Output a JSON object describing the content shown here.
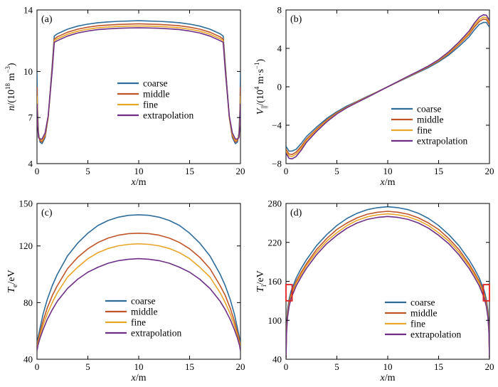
{
  "figure": {
    "legend": [
      "coarse",
      "middle",
      "fine",
      "extrapolation"
    ],
    "series_colors": [
      "#2f6d9b",
      "#c0552a",
      "#e8a628",
      "#6e2f87"
    ],
    "marker_color": "#e02020"
  },
  "chart_data": [
    {
      "id": "a",
      "type": "line",
      "panel_label": "(a)",
      "xlabel": "x/m",
      "ylabel": "n/(10^18 m^-3)",
      "ylabel_parts": {
        "main": "n",
        "rest_pre": "/(10",
        "sup1": "18",
        "mid": " m",
        "sup2": "−3",
        "close": ")"
      },
      "xlim": [
        0,
        20
      ],
      "ylim": [
        4,
        14
      ],
      "xticks": [
        0,
        5,
        10,
        15,
        20
      ],
      "yticks": [
        4,
        7,
        10,
        14
      ],
      "grid": false,
      "legend_position": "lower-center",
      "x": [
        0,
        0.05,
        0.15,
        0.3,
        0.5,
        0.8,
        1.1,
        1.5,
        1.7,
        2,
        3,
        4,
        5,
        6,
        7,
        8,
        9,
        10,
        11,
        12,
        13,
        14,
        15,
        16,
        17,
        18,
        18.3,
        18.5,
        18.9,
        19.2,
        19.5,
        19.7,
        19.85,
        19.95,
        20
      ],
      "series": [
        {
          "name": "coarse",
          "values": [
            10.0,
            7.6,
            6.0,
            5.4,
            5.3,
            5.7,
            7.0,
            10.5,
            12.3,
            12.45,
            12.75,
            12.95,
            13.08,
            13.17,
            13.22,
            13.26,
            13.28,
            13.3,
            13.28,
            13.26,
            13.22,
            13.17,
            13.08,
            12.95,
            12.75,
            12.45,
            12.3,
            10.5,
            7.0,
            5.7,
            5.3,
            5.4,
            6.0,
            7.6,
            10.0
          ]
        },
        {
          "name": "middle",
          "values": [
            9.0,
            7.1,
            5.8,
            5.5,
            5.4,
            5.8,
            7.0,
            10.3,
            12.1,
            12.25,
            12.55,
            12.75,
            12.88,
            12.97,
            13.02,
            13.06,
            13.08,
            13.1,
            13.08,
            13.06,
            13.02,
            12.97,
            12.88,
            12.75,
            12.55,
            12.25,
            12.1,
            10.3,
            7.0,
            5.8,
            5.4,
            5.5,
            5.8,
            7.1,
            9.0
          ]
        },
        {
          "name": "fine",
          "values": [
            8.4,
            6.8,
            5.8,
            5.6,
            5.5,
            5.9,
            7.0,
            10.2,
            12.0,
            12.12,
            12.42,
            12.62,
            12.75,
            12.84,
            12.89,
            12.93,
            12.95,
            12.96,
            12.95,
            12.93,
            12.89,
            12.84,
            12.75,
            12.62,
            12.42,
            12.12,
            12.0,
            10.2,
            7.0,
            5.9,
            5.5,
            5.6,
            5.8,
            6.8,
            8.4
          ]
        },
        {
          "name": "extrapolation",
          "values": [
            7.9,
            6.6,
            5.7,
            5.6,
            5.6,
            6.0,
            7.1,
            10.1,
            11.9,
            12.0,
            12.3,
            12.5,
            12.63,
            12.72,
            12.77,
            12.81,
            12.83,
            12.84,
            12.83,
            12.81,
            12.77,
            12.72,
            12.63,
            12.5,
            12.3,
            12.0,
            11.9,
            10.1,
            7.1,
            6.0,
            5.6,
            5.6,
            5.7,
            6.6,
            7.9
          ]
        }
      ]
    },
    {
      "id": "b",
      "type": "line",
      "panel_label": "(b)",
      "xlabel": "x/m",
      "ylabel": "V||/(10^4 m·s^-1)",
      "ylabel_parts": {
        "main": "V",
        "sub": "||",
        "rest_pre": "/(10",
        "sup1": "4",
        "mid": " m·s",
        "sup2": "−1",
        "close": ")"
      },
      "xlim": [
        0,
        20
      ],
      "ylim": [
        -8,
        8
      ],
      "xticks": [
        0,
        5,
        10,
        15,
        20
      ],
      "yticks": [
        -8,
        -4,
        0,
        4,
        8
      ],
      "grid": false,
      "legend_position": "lower-right",
      "x": [
        0,
        0.3,
        0.6,
        1.0,
        1.5,
        2,
        3,
        4,
        5,
        6,
        7,
        8,
        9,
        10,
        11,
        12,
        13,
        14,
        15,
        16,
        17,
        18,
        18.5,
        19,
        19.4,
        19.7,
        20
      ],
      "series": [
        {
          "name": "coarse",
          "values": [
            -6.2,
            -6.7,
            -6.7,
            -6.5,
            -5.9,
            -5.2,
            -4.2,
            -3.3,
            -2.6,
            -2.0,
            -1.5,
            -1.0,
            -0.5,
            0,
            0.5,
            1.0,
            1.5,
            2.0,
            2.6,
            3.3,
            4.2,
            5.2,
            5.9,
            6.5,
            6.7,
            6.7,
            6.2
          ]
        },
        {
          "name": "middle",
          "values": [
            -6.5,
            -7.0,
            -7.05,
            -6.8,
            -6.2,
            -5.45,
            -4.4,
            -3.45,
            -2.7,
            -2.1,
            -1.55,
            -1.05,
            -0.52,
            0,
            0.52,
            1.05,
            1.55,
            2.1,
            2.7,
            3.45,
            4.4,
            5.45,
            6.2,
            6.8,
            7.05,
            7.0,
            6.5
          ]
        },
        {
          "name": "fine",
          "values": [
            -6.7,
            -7.2,
            -7.25,
            -7.0,
            -6.4,
            -5.6,
            -4.5,
            -3.55,
            -2.75,
            -2.13,
            -1.58,
            -1.07,
            -0.53,
            0,
            0.53,
            1.07,
            1.58,
            2.13,
            2.75,
            3.55,
            4.5,
            5.6,
            6.4,
            7.0,
            7.25,
            7.2,
            6.7
          ]
        },
        {
          "name": "extrapolation",
          "values": [
            -6.9,
            -7.45,
            -7.5,
            -7.25,
            -6.6,
            -5.8,
            -4.65,
            -3.65,
            -2.82,
            -2.17,
            -1.62,
            -1.1,
            -0.55,
            0,
            0.55,
            1.1,
            1.62,
            2.17,
            2.82,
            3.65,
            4.65,
            5.8,
            6.6,
            7.25,
            7.5,
            7.45,
            6.9
          ]
        }
      ]
    },
    {
      "id": "c",
      "type": "line",
      "panel_label": "(c)",
      "xlabel": "x/m",
      "ylabel": "Te/eV",
      "ylabel_parts": {
        "main": "T",
        "sub": "e",
        "rest_pre": "/eV"
      },
      "xlim": [
        0,
        20
      ],
      "ylim": [
        40,
        150
      ],
      "xticks": [
        0,
        5,
        10,
        15,
        20
      ],
      "yticks": [
        40,
        80,
        120,
        150
      ],
      "grid": false,
      "legend_position": "lower-right",
      "x": [
        0,
        0.1,
        0.3,
        0.6,
        1,
        1.5,
        2,
        3,
        4,
        5,
        6,
        7,
        8,
        9,
        10,
        11,
        12,
        13,
        14,
        15,
        16,
        17,
        18,
        18.5,
        19,
        19.4,
        19.7,
        19.9,
        20
      ],
      "series": [
        {
          "name": "coarse",
          "values": [
            50,
            55,
            62,
            72,
            82,
            92,
            100,
            113,
            122,
            129,
            134.5,
            138,
            140.3,
            141.6,
            142,
            141.6,
            140.3,
            138,
            134.5,
            129,
            122,
            113,
            100,
            92,
            82,
            72,
            62,
            55,
            50
          ]
        },
        {
          "name": "middle",
          "values": [
            48,
            53,
            59,
            67,
            76,
            85,
            92,
            104,
            112,
            118,
            122.5,
            125.6,
            127.6,
            128.7,
            129,
            128.7,
            127.6,
            125.6,
            122.5,
            118,
            112,
            104,
            92,
            85,
            76,
            67,
            59,
            53,
            48
          ]
        },
        {
          "name": "fine",
          "values": [
            47,
            51,
            57,
            64,
            72,
            80,
            87,
            98,
            105,
            111,
            115.3,
            118.2,
            120.1,
            121.1,
            121.5,
            121.1,
            120.1,
            118.2,
            115.3,
            111,
            105,
            98,
            87,
            80,
            72,
            64,
            57,
            51,
            47
          ]
        },
        {
          "name": "extrapolation",
          "values": [
            46,
            50,
            55,
            61,
            68,
            75,
            81,
            90,
            96.5,
            101.5,
            105,
            107.8,
            109.6,
            110.6,
            111,
            110.6,
            109.6,
            107.8,
            105,
            101.5,
            96.5,
            90,
            81,
            75,
            68,
            61,
            55,
            50,
            46
          ]
        }
      ]
    },
    {
      "id": "d",
      "type": "line",
      "panel_label": "(d)",
      "xlabel": "x/m",
      "ylabel": "Ti/eV",
      "ylabel_parts": {
        "main": "T",
        "sub": "i",
        "rest_pre": "/eV"
      },
      "xlim": [
        0,
        20
      ],
      "ylim": [
        40,
        280
      ],
      "xticks": [
        0,
        5,
        10,
        15,
        20
      ],
      "yticks": [
        40,
        100,
        160,
        220,
        280
      ],
      "grid": false,
      "legend_position": "lower-right",
      "highlight_boxes": [
        {
          "x0": 0.0,
          "x1": 0.6,
          "y0": 130,
          "y1": 155
        },
        {
          "x0": 19.4,
          "x1": 20.0,
          "y0": 130,
          "y1": 155
        }
      ],
      "x": [
        0,
        0.05,
        0.15,
        0.3,
        0.5,
        1,
        1.5,
        2,
        3,
        4,
        5,
        6,
        7,
        8,
        9,
        10,
        11,
        12,
        13,
        14,
        15,
        16,
        17,
        18,
        18.5,
        19,
        19.5,
        19.7,
        19.85,
        19.95,
        20
      ],
      "series": [
        {
          "name": "coarse",
          "values": [
            45,
            90,
            115,
            132,
            145,
            165,
            180,
            193,
            215,
            232,
            246,
            257,
            265,
            270.5,
            273.5,
            275,
            273.5,
            270.5,
            265,
            257,
            246,
            232,
            215,
            193,
            180,
            165,
            145,
            132,
            115,
            90,
            45
          ]
        },
        {
          "name": "middle",
          "values": [
            44,
            86,
            110,
            127,
            140,
            160,
            174,
            187,
            209,
            226,
            240,
            250,
            258,
            263.5,
            266.5,
            268,
            266.5,
            263.5,
            258,
            250,
            240,
            226,
            209,
            187,
            174,
            160,
            140,
            127,
            110,
            86,
            44
          ]
        },
        {
          "name": "fine",
          "values": [
            43,
            83,
            107,
            124,
            137,
            157,
            171,
            184,
            205,
            222,
            235,
            246,
            254,
            259.5,
            262.5,
            264,
            262.5,
            259.5,
            254,
            246,
            235,
            222,
            205,
            184,
            171,
            157,
            137,
            124,
            107,
            83,
            43
          ]
        },
        {
          "name": "extrapolation",
          "values": [
            42,
            80,
            104,
            121,
            134,
            153,
            167,
            180,
            201,
            218,
            231,
            242,
            250,
            255.5,
            258.5,
            260,
            258.5,
            255.5,
            250,
            242,
            231,
            218,
            201,
            180,
            167,
            153,
            134,
            121,
            104,
            80,
            42
          ]
        }
      ]
    }
  ]
}
